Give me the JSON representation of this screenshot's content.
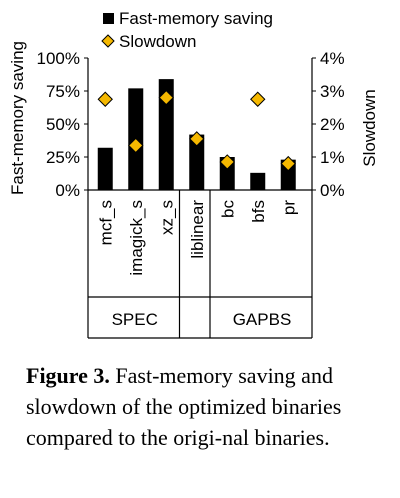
{
  "chart_data": {
    "type": "bar",
    "categories": [
      "mcf_s",
      "imagick_s",
      "xz_s",
      "liblinear",
      "bc",
      "bfs",
      "pr"
    ],
    "groups": [
      {
        "label": "SPEC",
        "categories": [
          "mcf_s",
          "imagick_s",
          "xz_s"
        ]
      },
      {
        "label": "",
        "categories": [
          "liblinear"
        ]
      },
      {
        "label": "GAPBS",
        "categories": [
          "bc",
          "bfs",
          "pr"
        ]
      }
    ],
    "series": [
      {
        "name": "Fast-memory saving",
        "kind": "bar",
        "axis": "left",
        "color": "#000000",
        "values": [
          32,
          77,
          84,
          42,
          25,
          13,
          23
        ]
      },
      {
        "name": "Slowdown",
        "kind": "marker",
        "marker": "diamond",
        "axis": "right",
        "color": "#f5b800",
        "values": [
          2.75,
          1.35,
          2.8,
          1.55,
          0.85,
          2.75,
          0.8
        ]
      }
    ],
    "ylabel": "Fast-memory saving",
    "y2label": "Slowdown",
    "ylim": [
      0,
      100
    ],
    "y2lim": [
      0,
      4
    ],
    "yticks": [
      "0%",
      "25%",
      "50%",
      "75%",
      "100%"
    ],
    "y2ticks": [
      "0%",
      "1%",
      "2%",
      "3%",
      "4%"
    ],
    "legend": "top-center",
    "grid": false
  },
  "caption": {
    "label": "Figure 3.",
    "text": "Fast-memory saving and slowdown of the optimized binaries compared to the origi-nal binaries."
  }
}
